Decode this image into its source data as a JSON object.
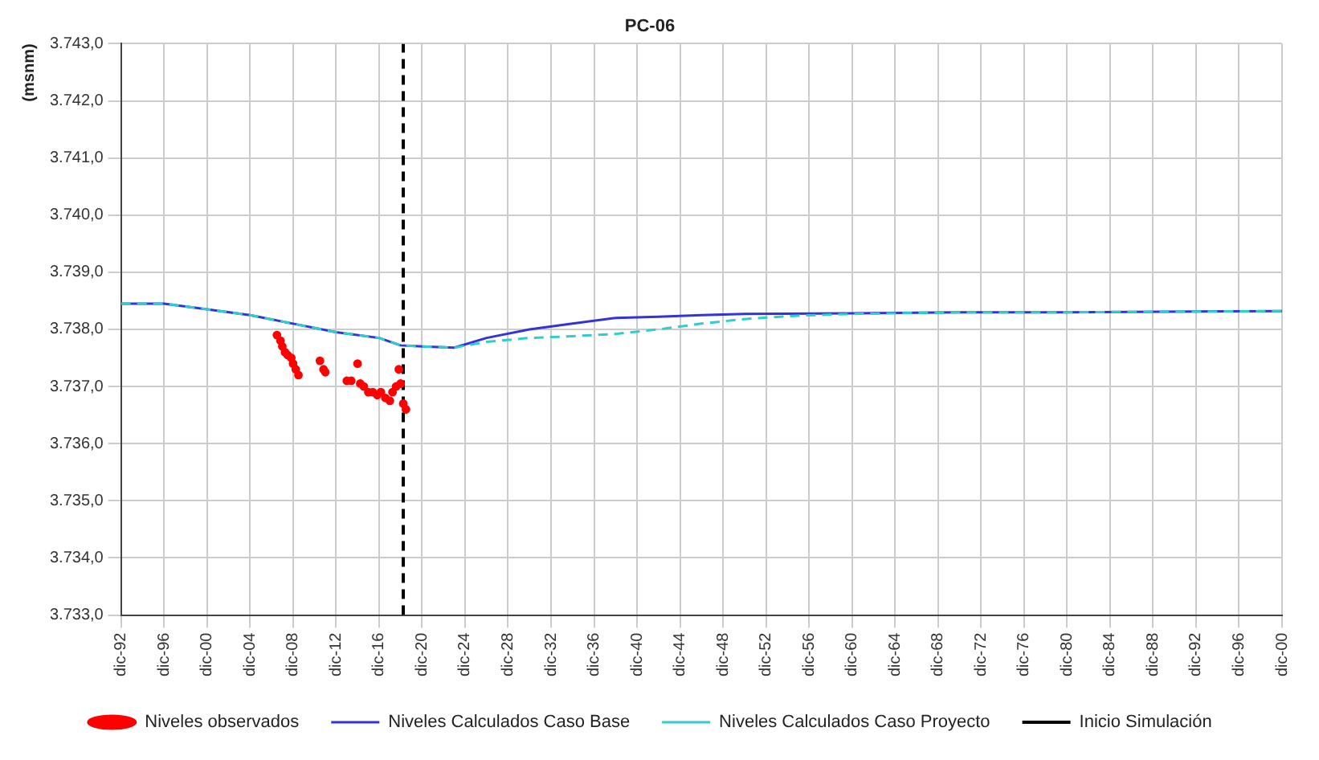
{
  "chart_data": {
    "type": "line",
    "title": "PC-06",
    "ylabel": "(msnm)",
    "xlim": [
      "1992-12",
      "2100-12"
    ],
    "xticks": [
      {
        "value": "1992-12",
        "label": "dic-92"
      },
      {
        "value": "1996-12",
        "label": "dic-96"
      },
      {
        "value": "2000-12",
        "label": "dic-00"
      },
      {
        "value": "2004-12",
        "label": "dic-04"
      },
      {
        "value": "2008-12",
        "label": "dic-08"
      },
      {
        "value": "2012-12",
        "label": "dic-12"
      },
      {
        "value": "2016-12",
        "label": "dic-16"
      },
      {
        "value": "2020-12",
        "label": "dic-20"
      },
      {
        "value": "2024-12",
        "label": "dic-24"
      },
      {
        "value": "2028-12",
        "label": "dic-28"
      },
      {
        "value": "2032-12",
        "label": "dic-32"
      },
      {
        "value": "2036-12",
        "label": "dic-36"
      },
      {
        "value": "2040-12",
        "label": "dic-40"
      },
      {
        "value": "2044-12",
        "label": "dic-44"
      },
      {
        "value": "2048-12",
        "label": "dic-48"
      },
      {
        "value": "2052-12",
        "label": "dic-52"
      },
      {
        "value": "2056-12",
        "label": "dic-56"
      },
      {
        "value": "2060-12",
        "label": "dic-60"
      },
      {
        "value": "2064-12",
        "label": "dic-64"
      },
      {
        "value": "2068-12",
        "label": "dic-68"
      },
      {
        "value": "2072-12",
        "label": "dic-72"
      },
      {
        "value": "2076-12",
        "label": "dic-76"
      },
      {
        "value": "2080-12",
        "label": "dic-80"
      },
      {
        "value": "2084-12",
        "label": "dic-84"
      },
      {
        "value": "2088-12",
        "label": "dic-88"
      },
      {
        "value": "2092-12",
        "label": "dic-92"
      },
      {
        "value": "2096-12",
        "label": "dic-96"
      },
      {
        "value": "2100-12",
        "label": "dic-00"
      }
    ],
    "ylim": [
      3733,
      3743
    ],
    "yticks": [
      {
        "value": 3733,
        "label": "3.733,0"
      },
      {
        "value": 3734,
        "label": "3.734,0"
      },
      {
        "value": 3735,
        "label": "3.735,0"
      },
      {
        "value": 3736,
        "label": "3.736,0"
      },
      {
        "value": 3737,
        "label": "3.737,0"
      },
      {
        "value": 3738,
        "label": "3.738,0"
      },
      {
        "value": 3739,
        "label": "3.739,0"
      },
      {
        "value": 3740,
        "label": "3.740,0"
      },
      {
        "value": 3741,
        "label": "3.741,0"
      },
      {
        "value": 3742,
        "label": "3.742,0"
      },
      {
        "value": 3743,
        "label": "3.743,0"
      }
    ],
    "grid": true,
    "legend": "bottom",
    "series": [
      {
        "name": "Niveles observados",
        "type": "scatter",
        "marker": "circle",
        "color": "#ff0000",
        "x": [
          "2007-06",
          "2007-10",
          "2007-12",
          "2008-03",
          "2008-06",
          "2008-10",
          "2008-12",
          "2009-03",
          "2009-06",
          "2011-06",
          "2011-10",
          "2011-12",
          "2013-12",
          "2014-05",
          "2014-12",
          "2015-03",
          "2015-07",
          "2015-12",
          "2016-05",
          "2016-10",
          "2017-02",
          "2017-07",
          "2017-12",
          "2018-03",
          "2018-07",
          "2018-10",
          "2018-12",
          "2019-03",
          "2019-06"
        ],
        "values": [
          3737.9,
          3737.8,
          3737.7,
          3737.6,
          3737.55,
          3737.5,
          3737.4,
          3737.3,
          3737.2,
          3737.45,
          3737.3,
          3737.25,
          3737.1,
          3737.1,
          3737.4,
          3737.05,
          3737.0,
          3736.9,
          3736.9,
          3736.85,
          3736.9,
          3736.8,
          3736.75,
          3736.9,
          3737.0,
          3737.3,
          3737.05,
          3736.7,
          3736.6
        ]
      },
      {
        "name": "Niveles Calculados Caso Base",
        "type": "line",
        "line_style": "solid",
        "color": "#3333dd",
        "x": [
          "1992-12",
          "1996-12",
          "2000-12",
          "2004-12",
          "2008-12",
          "2012-12",
          "2016-12",
          "2018-12",
          "2020-12",
          "2023-12",
          "2026-12",
          "2030-12",
          "2034-12",
          "2038-12",
          "2042-12",
          "2046-12",
          "2050-12",
          "2060-12",
          "2070-12",
          "2080-12",
          "2100-12"
        ],
        "values": [
          3738.45,
          3738.45,
          3738.35,
          3738.25,
          3738.1,
          3737.95,
          3737.85,
          3737.72,
          3737.7,
          3737.68,
          3737.85,
          3738.0,
          3738.1,
          3738.2,
          3738.22,
          3738.25,
          3738.27,
          3738.28,
          3738.3,
          3738.3,
          3738.32
        ]
      },
      {
        "name": "Niveles Calculados Caso Proyecto",
        "type": "line",
        "line_style": "dashed",
        "color": "#33cccc",
        "x": [
          "1992-12",
          "1996-12",
          "2000-12",
          "2004-12",
          "2008-12",
          "2012-12",
          "2016-12",
          "2018-12",
          "2020-12",
          "2023-12",
          "2026-12",
          "2030-12",
          "2034-12",
          "2038-12",
          "2042-12",
          "2046-12",
          "2050-12",
          "2055-12",
          "2060-12",
          "2070-12",
          "2080-12",
          "2100-12"
        ],
        "values": [
          3738.45,
          3738.45,
          3738.35,
          3738.25,
          3738.1,
          3737.95,
          3737.85,
          3737.72,
          3737.7,
          3737.68,
          3737.78,
          3737.85,
          3737.88,
          3737.92,
          3738.0,
          3738.1,
          3738.18,
          3738.24,
          3738.27,
          3738.3,
          3738.3,
          3738.32
        ]
      }
    ],
    "ref_lines": [
      {
        "axis": "x",
        "value": "2019-03",
        "label": "Inicio Simulación",
        "color": "#000000",
        "line_style": "dashed"
      }
    ]
  }
}
